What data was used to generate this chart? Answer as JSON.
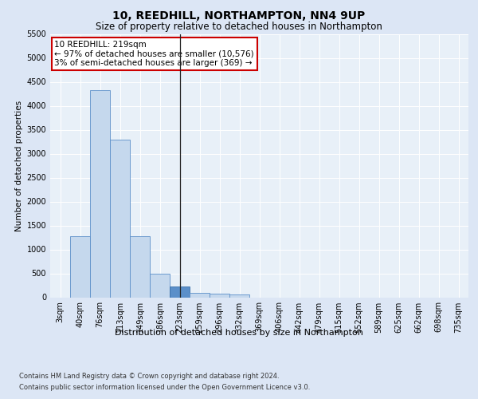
{
  "title": "10, REEDHILL, NORTHAMPTON, NN4 9UP",
  "subtitle": "Size of property relative to detached houses in Northampton",
  "xlabel": "Distribution of detached houses by size in Northampton",
  "ylabel": "Number of detached properties",
  "categories": [
    "3sqm",
    "40sqm",
    "76sqm",
    "113sqm",
    "149sqm",
    "186sqm",
    "223sqm",
    "259sqm",
    "296sqm",
    "332sqm",
    "369sqm",
    "406sqm",
    "442sqm",
    "479sqm",
    "515sqm",
    "552sqm",
    "589sqm",
    "625sqm",
    "662sqm",
    "698sqm",
    "735sqm"
  ],
  "values": [
    0,
    1270,
    4330,
    3300,
    1280,
    490,
    220,
    90,
    70,
    55,
    0,
    0,
    0,
    0,
    0,
    0,
    0,
    0,
    0,
    0,
    0
  ],
  "bar_color": "#c5d8ed",
  "bar_edge_color": "#5b8fc9",
  "highlight_bar_index": 6,
  "highlight_bar_color": "#5b8fc9",
  "highlight_bar_edge_color": "#3a6ea8",
  "annotation_text": "10 REEDHILL: 219sqm\n← 97% of detached houses are smaller (10,576)\n3% of semi-detached houses are larger (369) →",
  "annotation_box_facecolor": "#ffffff",
  "annotation_box_edge_color": "#cc0000",
  "ylim": [
    0,
    5500
  ],
  "yticks": [
    0,
    500,
    1000,
    1500,
    2000,
    2500,
    3000,
    3500,
    4000,
    4500,
    5000,
    5500
  ],
  "bg_color": "#dce6f5",
  "plot_bg_color": "#e8f0f8",
  "grid_color": "#ffffff",
  "footer_line1": "Contains HM Land Registry data © Crown copyright and database right 2024.",
  "footer_line2": "Contains public sector information licensed under the Open Government Licence v3.0.",
  "title_fontsize": 10,
  "subtitle_fontsize": 8.5,
  "xlabel_fontsize": 8,
  "ylabel_fontsize": 7.5,
  "tick_fontsize": 7,
  "footer_fontsize": 6,
  "annotation_fontsize": 7.5
}
